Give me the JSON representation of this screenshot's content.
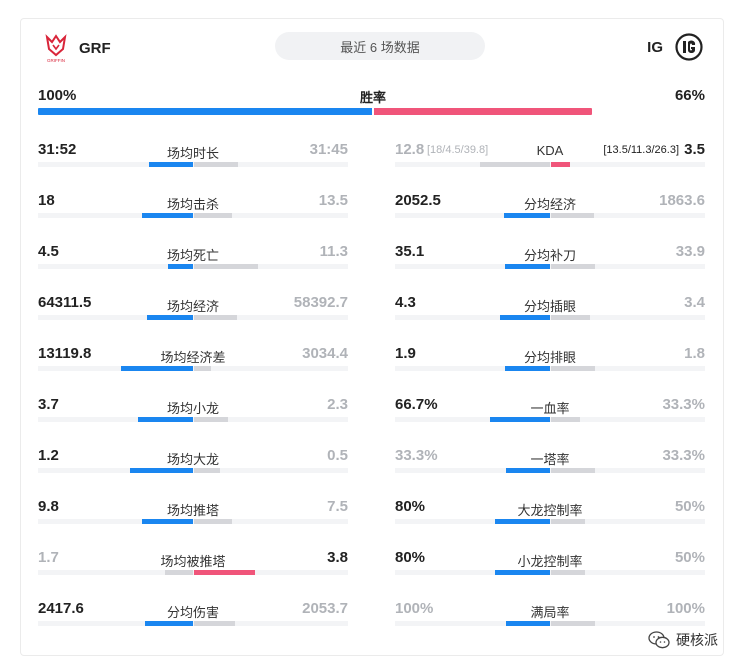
{
  "header": {
    "left_team": "GRF",
    "right_team": "IG",
    "recent_label": "最近 6 场数据",
    "left_logo_text": "GRIFFIN"
  },
  "win_rate": {
    "label": "胜率",
    "left": "100%",
    "right": "66%",
    "left_fraction": 1.0,
    "right_fraction": 0.66
  },
  "left_stats": [
    {
      "label": "场均时长",
      "left": "31:52",
      "right": "31:45",
      "left_dim": false,
      "right_dim": true
    },
    {
      "label": "场均击杀",
      "left": "18",
      "right": "13.5",
      "left_dim": false,
      "right_dim": true
    },
    {
      "label": "场均死亡",
      "left": "4.5",
      "right": "11.3",
      "left_dim": false,
      "right_dim": true
    },
    {
      "label": "场均经济",
      "left": "64311.5",
      "right": "58392.7",
      "left_dim": false,
      "right_dim": true
    },
    {
      "label": "场均经济差",
      "left": "13119.8",
      "right": "3034.4",
      "left_dim": false,
      "right_dim": true
    },
    {
      "label": "场均小龙",
      "left": "3.7",
      "right": "2.3",
      "left_dim": false,
      "right_dim": true
    },
    {
      "label": "场均大龙",
      "left": "1.2",
      "right": "0.5",
      "left_dim": false,
      "right_dim": true
    },
    {
      "label": "场均推塔",
      "left": "9.8",
      "right": "7.5",
      "left_dim": false,
      "right_dim": true
    },
    {
      "label": "场均被推塔",
      "left": "1.7",
      "right": "3.8",
      "left_dim": true,
      "right_dim": false,
      "right_wins": true
    },
    {
      "label": "分均伤害",
      "left": "2417.6",
      "right": "2053.7",
      "left_dim": false,
      "right_dim": true
    }
  ],
  "right_stats": [
    {
      "label": "KDA",
      "left": "12.8",
      "left_sub": "[18/4.5/39.8]",
      "right": "3.5",
      "right_sub": "[13.5/11.3/26.3]",
      "left_dim": true,
      "right_dim": false,
      "right_wins": true
    },
    {
      "label": "分均经济",
      "left": "2052.5",
      "right": "1863.6",
      "left_dim": false,
      "right_dim": true
    },
    {
      "label": "分均补刀",
      "left": "35.1",
      "right": "33.9",
      "left_dim": false,
      "right_dim": true
    },
    {
      "label": "分均插眼",
      "left": "4.3",
      "right": "3.4",
      "left_dim": false,
      "right_dim": true
    },
    {
      "label": "分均排眼",
      "left": "1.9",
      "right": "1.8",
      "left_dim": false,
      "right_dim": true
    },
    {
      "label": "一血率",
      "left": "66.7%",
      "right": "33.3%",
      "left_dim": false,
      "right_dim": true
    },
    {
      "label": "一塔率",
      "left": "33.3%",
      "right": "33.3%",
      "left_dim": true,
      "right_dim": true
    },
    {
      "label": "大龙控制率",
      "left": "80%",
      "right": "50%",
      "left_dim": false,
      "right_dim": true
    },
    {
      "label": "小龙控制率",
      "left": "80%",
      "right": "50%",
      "left_dim": false,
      "right_dim": true
    },
    {
      "label": "满局率",
      "left": "100%",
      "right": "100%",
      "left_dim": true,
      "right_dim": true
    }
  ],
  "left_bar_fractions": [
    [
      0.5,
      0.5
    ],
    [
      0.57,
      0.43
    ],
    [
      0.28,
      0.72
    ],
    [
      0.52,
      0.48
    ],
    [
      0.81,
      0.19
    ],
    [
      0.62,
      0.38
    ],
    [
      0.71,
      0.29
    ],
    [
      0.57,
      0.43
    ],
    [
      0.31,
      0.69
    ],
    [
      0.54,
      0.46
    ]
  ],
  "right_bar_fractions": [
    [
      0.79,
      0.21
    ],
    [
      0.52,
      0.48
    ],
    [
      0.51,
      0.49
    ],
    [
      0.56,
      0.44
    ],
    [
      0.51,
      0.49
    ],
    [
      0.67,
      0.33
    ],
    [
      0.5,
      0.5
    ],
    [
      0.62,
      0.38
    ],
    [
      0.62,
      0.38
    ],
    [
      0.5,
      0.5
    ]
  ],
  "colors": {
    "left_accent": "#1a86f0",
    "right_accent": "#f0557a",
    "neutral_bar": "#d5d6da"
  },
  "watermark": {
    "text": "硬核派",
    "icon": "wechat-icon"
  }
}
